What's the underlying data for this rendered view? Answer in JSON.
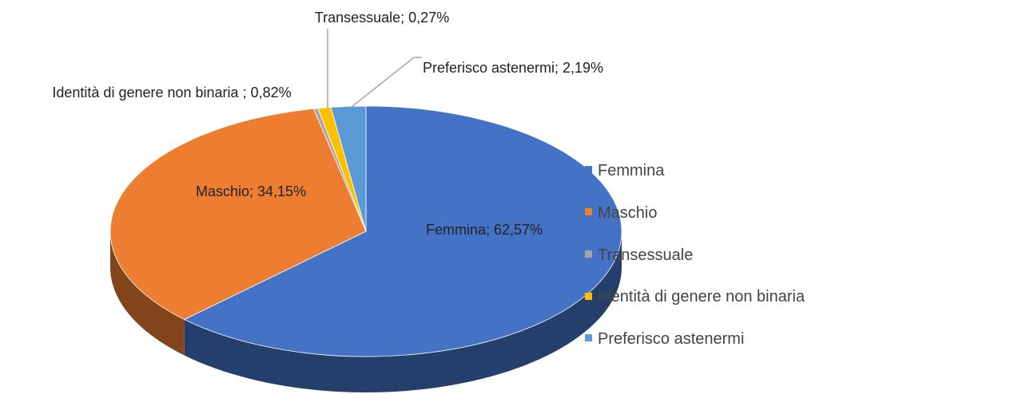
{
  "chart_data": {
    "type": "pie3d",
    "categories": [
      "Femmina",
      "Maschio",
      "Transessuale",
      "Identità di genere non binaria",
      "Preferisco astenermi"
    ],
    "values": [
      62.57,
      34.15,
      0.27,
      0.82,
      2.19
    ],
    "value_labels": [
      "Femmina; 62,57%",
      "Maschio; 34,15%",
      "Transessuale; 0,27%",
      "Identità di genere non binaria ; 0,82%",
      "Preferisco astenermi; 2,19%"
    ],
    "colors": [
      "#4472c4",
      "#ed7d31",
      "#a5a5a5",
      "#ffc000",
      "#5b9bd5"
    ],
    "legend": "right"
  }
}
